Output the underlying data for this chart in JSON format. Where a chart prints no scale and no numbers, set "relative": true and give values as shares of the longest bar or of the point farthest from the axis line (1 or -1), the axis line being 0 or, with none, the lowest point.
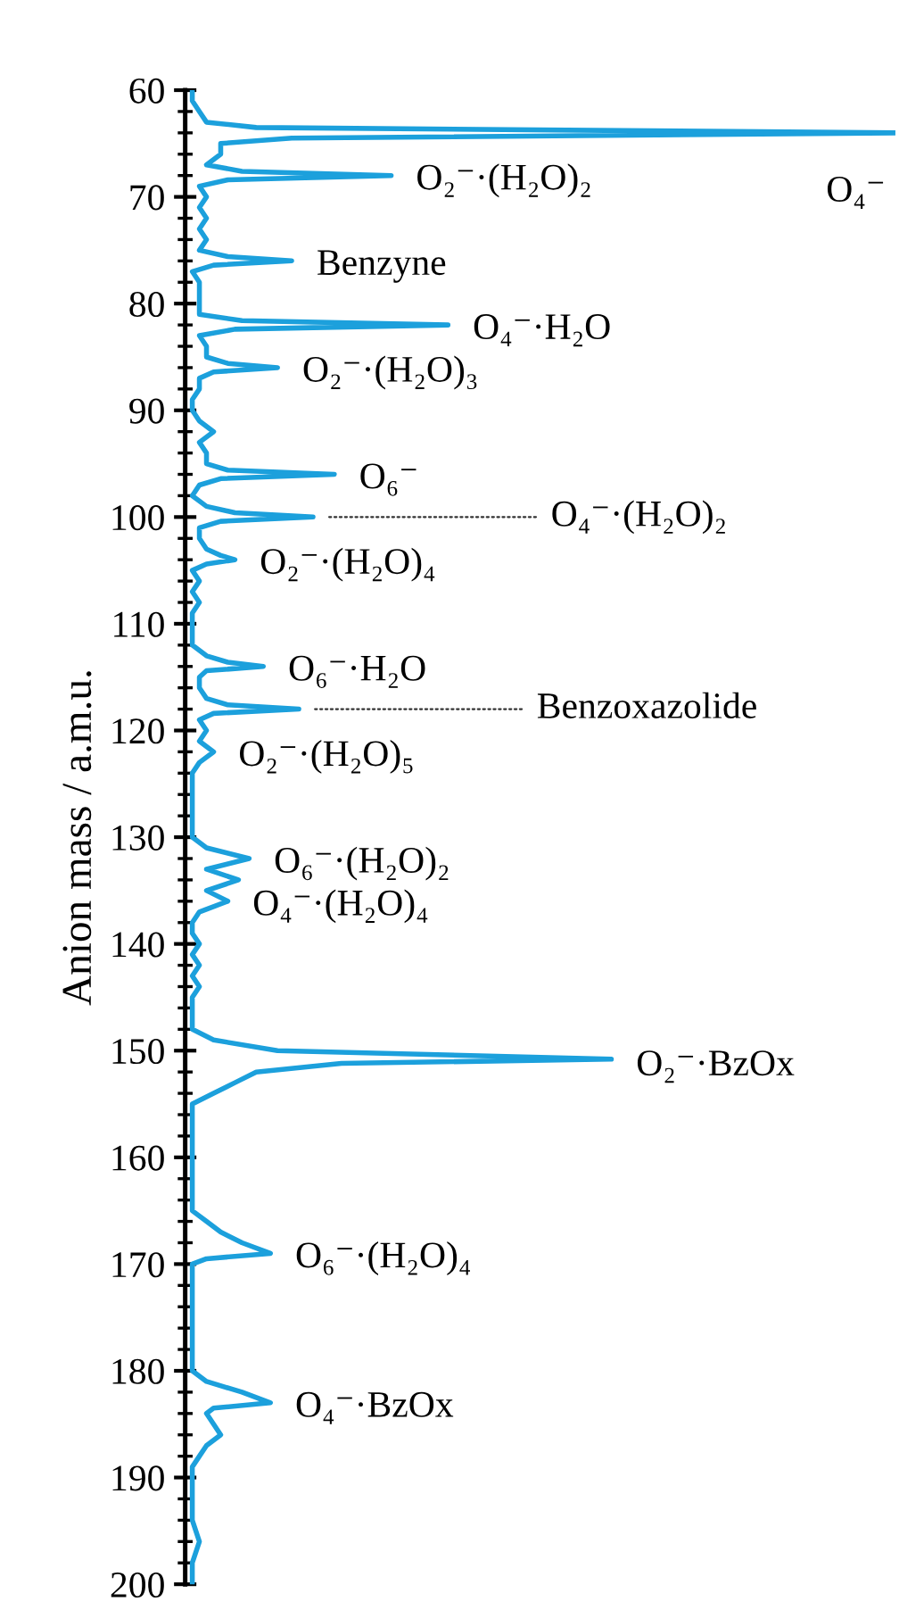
{
  "chart_data": {
    "type": "line",
    "orientation": "horizontal",
    "relative": true,
    "ylabel": "Anion mass / a.m.u.",
    "ylim": [
      200,
      60
    ],
    "yticks": [
      60,
      70,
      80,
      90,
      100,
      110,
      120,
      130,
      140,
      150,
      160,
      170,
      180,
      190,
      200
    ],
    "tick_labels": "y",
    "grid": false,
    "legend": false,
    "marker": "none",
    "line_style": "solid",
    "x": [
      60,
      61,
      62,
      63,
      63.5,
      64,
      64.5,
      65,
      66,
      66.5,
      67,
      67.6,
      68,
      68.4,
      69,
      70,
      71,
      72,
      73,
      74,
      75,
      75.6,
      76,
      76.4,
      77,
      78,
      79,
      80,
      81,
      81.6,
      82,
      82.4,
      83,
      84,
      85,
      85.6,
      86,
      86.4,
      87,
      88,
      89,
      90,
      91,
      92,
      93,
      94,
      95,
      95.6,
      96,
      96.4,
      97,
      98,
      99,
      99.6,
      100,
      100.4,
      101,
      102,
      103,
      103.6,
      104,
      104.4,
      105,
      106,
      107,
      108,
      109,
      110,
      111,
      112,
      113,
      113.6,
      114,
      114.4,
      115,
      116,
      117,
      117.6,
      118,
      118.4,
      119,
      120,
      121,
      122,
      123,
      124,
      125,
      126,
      127,
      128,
      129,
      130,
      131,
      132,
      133,
      134,
      135,
      136,
      137,
      138,
      139,
      140,
      141,
      142,
      143,
      144,
      145,
      146,
      147,
      148,
      149,
      150,
      150.8,
      151.2,
      152,
      153,
      154,
      155,
      156,
      157,
      158,
      159,
      160,
      161,
      162,
      163,
      164,
      165,
      166,
      167,
      168,
      169,
      169.5,
      170,
      172,
      174,
      176,
      178,
      180,
      181,
      182,
      183,
      183.5,
      184,
      185,
      186,
      187,
      188,
      189,
      190,
      192,
      194,
      196,
      198,
      200
    ],
    "series": [
      {
        "color": "#1ca0dc",
        "values": [
          0.01,
          0.01,
          0.02,
          0.03,
          0.1,
          1.0,
          0.15,
          0.05,
          0.05,
          0.04,
          0.03,
          0.08,
          0.29,
          0.06,
          0.02,
          0.03,
          0.02,
          0.03,
          0.02,
          0.03,
          0.02,
          0.06,
          0.15,
          0.04,
          0.01,
          0.02,
          0.02,
          0.02,
          0.02,
          0.08,
          0.37,
          0.07,
          0.02,
          0.03,
          0.03,
          0.06,
          0.13,
          0.04,
          0.02,
          0.02,
          0.01,
          0.01,
          0.02,
          0.04,
          0.02,
          0.03,
          0.03,
          0.06,
          0.21,
          0.05,
          0.02,
          0.01,
          0.03,
          0.07,
          0.18,
          0.05,
          0.02,
          0.02,
          0.03,
          0.05,
          0.07,
          0.03,
          0.01,
          0.02,
          0.01,
          0.02,
          0.01,
          0.01,
          0.01,
          0.01,
          0.03,
          0.06,
          0.11,
          0.03,
          0.02,
          0.02,
          0.03,
          0.06,
          0.16,
          0.04,
          0.02,
          0.03,
          0.02,
          0.04,
          0.02,
          0.01,
          0.01,
          0.01,
          0.01,
          0.01,
          0.01,
          0.01,
          0.03,
          0.09,
          0.03,
          0.075,
          0.03,
          0.06,
          0.02,
          0.01,
          0.01,
          0.02,
          0.01,
          0.02,
          0.01,
          0.02,
          0.01,
          0.01,
          0.01,
          0.01,
          0.04,
          0.13,
          0.6,
          0.22,
          0.1,
          0.07,
          0.04,
          0.01,
          0.01,
          0.01,
          0.01,
          0.01,
          0.01,
          0.01,
          0.01,
          0.01,
          0.01,
          0.01,
          0.03,
          0.05,
          0.08,
          0.12,
          0.03,
          0.01,
          0.01,
          0.01,
          0.01,
          0.01,
          0.01,
          0.03,
          0.08,
          0.12,
          0.04,
          0.03,
          0.04,
          0.05,
          0.03,
          0.02,
          0.01,
          0.01,
          0.01,
          0.01,
          0.02,
          0.01,
          0.01
        ]
      }
    ],
    "annotations": [
      {
        "text": "O₄⁻",
        "x": 1.0,
        "y": 64
      },
      {
        "text": "O₂⁻·(H₂O)₂",
        "x": 0.29,
        "y": 68
      },
      {
        "text": "Benzyne",
        "x": 0.15,
        "y": 76
      },
      {
        "text": "O₄⁻·H₂O",
        "x": 0.37,
        "y": 82
      },
      {
        "text": "O₂⁻·(H₂O)₃",
        "x": 0.13,
        "y": 86
      },
      {
        "text": "O₆⁻",
        "x": 0.21,
        "y": 96
      },
      {
        "text": "O₄⁻·(H₂O)₂",
        "x": 0.18,
        "y": 100
      },
      {
        "text": "O₂⁻·(H₂O)₄",
        "x": 0.07,
        "y": 104
      },
      {
        "text": "O₆⁻·H₂O",
        "x": 0.11,
        "y": 114
      },
      {
        "text": "Benzoxazolide",
        "x": 0.16,
        "y": 118
      },
      {
        "text": "O₂⁻·(H₂O)₅",
        "x": 0.04,
        "y": 122
      },
      {
        "text": "O₆⁻·(H₂O)₂",
        "x": 0.09,
        "y": 132
      },
      {
        "text": "O₄⁻·(H₂O)₄",
        "x": 0.06,
        "y": 136
      },
      {
        "text": "O₂⁻·BzOx",
        "x": 0.6,
        "y": 151
      },
      {
        "text": "O₆⁻·(H₂O)₄",
        "x": 0.12,
        "y": 169
      },
      {
        "text": "O₄⁻·BzOx",
        "x": 0.12,
        "y": 183
      }
    ]
  }
}
